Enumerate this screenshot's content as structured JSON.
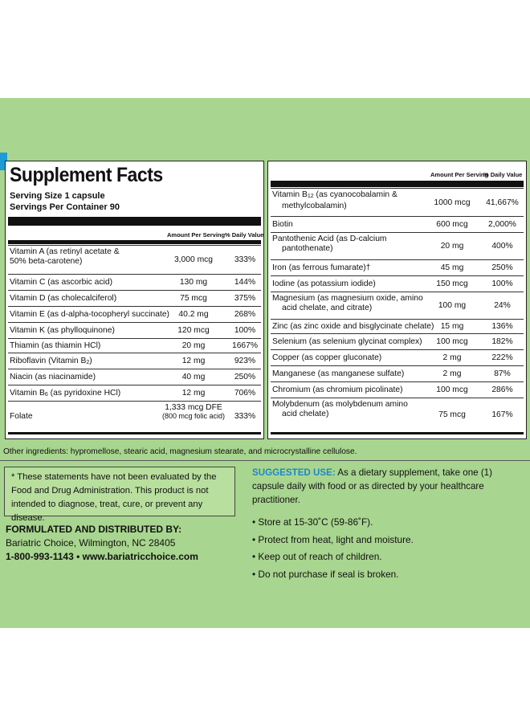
{
  "label": {
    "title": "Supplement Facts",
    "serving_size": "Serving Size 1 capsule",
    "servings_per_container": "Servings Per Container 90",
    "col_amount": "Amount Per Serving",
    "col_dv": "% Daily Value"
  },
  "left_rows": [
    {
      "name": "Vitamin A (as retinyl acetate &",
      "name2": "50% beta-carotene)",
      "amount": "3,000 mcg",
      "dv": "333%"
    },
    {
      "name": "Vitamin C (as ascorbic acid)",
      "amount": "130 mg",
      "dv": "144%"
    },
    {
      "name": "Vitamin D (as cholecalciferol)",
      "amount": "75 mcg",
      "dv": "375%"
    },
    {
      "name": "Vitamin E (as d-alpha-tocopheryl succinate)",
      "amount": "40.2 mg",
      "dv": "268%"
    },
    {
      "name": "Vitamin K (as phylloquinone)",
      "amount": "120 mcg",
      "dv": "100%"
    },
    {
      "name": "Thiamin (as thiamin HCl)",
      "amount": "20 mg",
      "dv": "1667%"
    },
    {
      "name_pre": "Riboflavin (Vitamin B",
      "sub": "2",
      "name_post": ")",
      "amount": "12 mg",
      "dv": "923%"
    },
    {
      "name": "Niacin (as niacinamide)",
      "amount": "40 mg",
      "dv": "250%"
    },
    {
      "name_pre": "Vitamin B",
      "sub": "6",
      "name_post": " (as pyridoxine HCl)",
      "amount": "12 mg",
      "dv": "706%"
    },
    {
      "name": "Folate",
      "amount": "1,333 mcg DFE",
      "amount2": "(800 mcg folic acid)",
      "dv": "333%"
    }
  ],
  "right_rows": [
    {
      "name_pre": "Vitamin B",
      "sub": "12",
      "name_post": " (as cyanocobalamin &",
      "name2": "methylcobalamin)",
      "amount": "1000 mcg",
      "dv": "41,667%"
    },
    {
      "name": "Biotin",
      "amount": "600 mcg",
      "dv": "2,000%"
    },
    {
      "name": "Pantothenic Acid (as D-calcium",
      "name2": "pantothenate)",
      "amount": "20 mg",
      "dv": "400%"
    },
    {
      "name": "Iron (as ferrous fumarate)†",
      "amount": "45 mg",
      "dv": "250%"
    },
    {
      "name": "Iodine (as potassium iodide)",
      "amount": "150 mcg",
      "dv": "100%"
    },
    {
      "name": "Magnesium (as magnesium oxide, amino",
      "name2": "acid chelate, and citrate)",
      "amount": "100 mg",
      "dv": "24%"
    },
    {
      "name": "Zinc (as zinc oxide and bisglycinate chelate)",
      "amount": "15 mg",
      "dv": "136%"
    },
    {
      "name": "Selenium (as selenium glycinat complex)",
      "amount": "100 mcg",
      "dv": "182%"
    },
    {
      "name": "Copper (as copper gluconate)",
      "amount": "2 mg",
      "dv": "222%"
    },
    {
      "name": "Manganese (as manganese sulfate)",
      "amount": "2 mg",
      "dv": "87%"
    },
    {
      "name": "Chromium (as chromium picolinate)",
      "amount": "100 mcg",
      "dv": "286%"
    },
    {
      "name": "Molybdenum (as molybdenum amino",
      "name2": "acid chelate)",
      "amount": "75 mcg",
      "dv": "167%"
    }
  ],
  "other_ingredients": "Other ingredients: hypromellose, stearic acid, magnesium stearate, and microcrystalline cellulose.",
  "disclaimer": "* These statements have not been evaluated by the Food and Drug Administration. This product is not intended to diagnose, treat, cure, or prevent any disease.",
  "formulated": {
    "heading": "FORMULATED AND DISTRIBUTED BY:",
    "address": "Bariatric Choice, Wilmington, NC 28405",
    "phone": "1-800-993-1143",
    "separator": "•",
    "website": "www.bariatricchoice.com"
  },
  "suggested_use": {
    "label": "SUGGESTED USE:",
    "text": " As a dietary supplement, take one (1) capsule daily with food or as directed by your healthcare practitioner."
  },
  "storage_bullets": [
    "Store at 15-30˚C (59-86˚F).",
    "Protect from heat, light and moisture.",
    "Keep out of reach of children.",
    "Do not purchase if seal is broken."
  ],
  "colors": {
    "label_green": "#a8d58f",
    "disclaimer_green": "#b8df9e",
    "accent_blue": "#1e88c8"
  }
}
